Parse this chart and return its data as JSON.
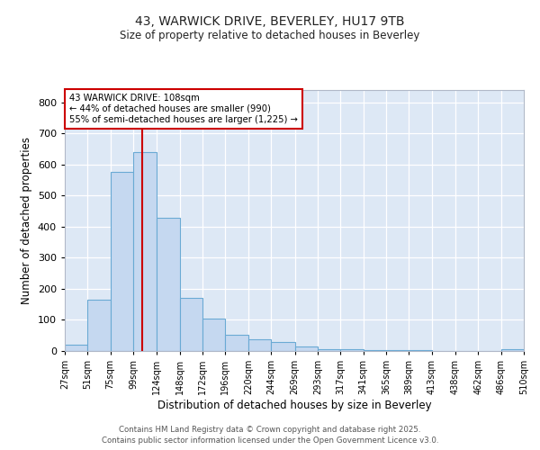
{
  "title1": "43, WARWICK DRIVE, BEVERLEY, HU17 9TB",
  "title2": "Size of property relative to detached houses in Beverley",
  "xlabel": "Distribution of detached houses by size in Beverley",
  "ylabel": "Number of detached properties",
  "bin_edges": [
    27,
    51,
    75,
    99,
    124,
    148,
    172,
    196,
    220,
    244,
    269,
    293,
    317,
    341,
    365,
    389,
    413,
    438,
    462,
    486,
    510
  ],
  "bar_heights": [
    20,
    165,
    575,
    640,
    430,
    170,
    105,
    52,
    37,
    30,
    15,
    7,
    5,
    3,
    2,
    2,
    0,
    0,
    0,
    5
  ],
  "bar_color": "#c5d8f0",
  "bar_edgecolor": "#6aaad4",
  "figure_bg": "#ffffff",
  "axes_bg": "#dde8f5",
  "grid_color": "#ffffff",
  "property_line_x": 108,
  "property_line_color": "#cc0000",
  "annotation_title": "43 WARWICK DRIVE: 108sqm",
  "annotation_line1": "← 44% of detached houses are smaller (990)",
  "annotation_line2": "55% of semi-detached houses are larger (1,225) →",
  "annotation_box_edgecolor": "#cc0000",
  "annotation_box_facecolor": "#ffffff",
  "ylim": [
    0,
    840
  ],
  "yticks": [
    0,
    100,
    200,
    300,
    400,
    500,
    600,
    700,
    800
  ],
  "footnote1": "Contains HM Land Registry data © Crown copyright and database right 2025.",
  "footnote2": "Contains public sector information licensed under the Open Government Licence v3.0."
}
